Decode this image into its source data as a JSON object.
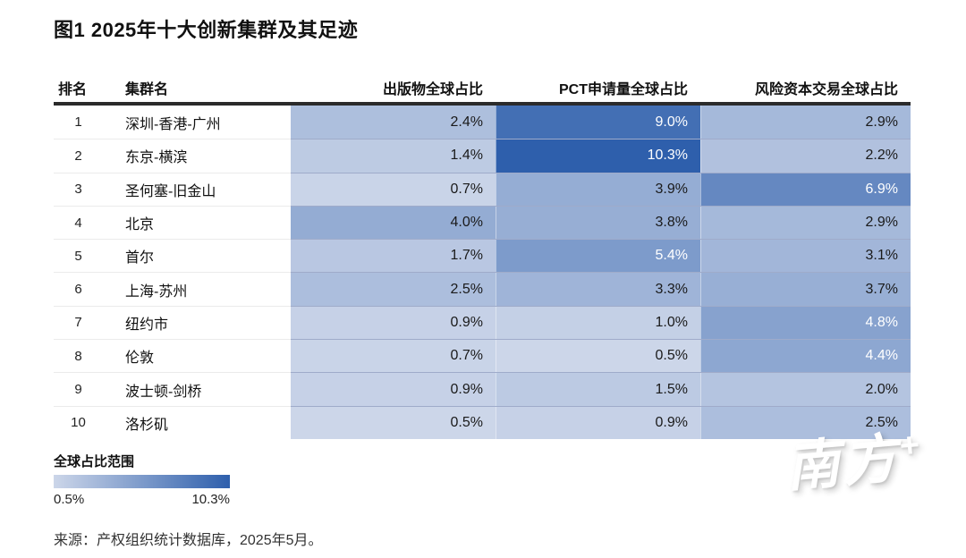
{
  "title": "图1 2025年十大创新集群及其足迹",
  "table": {
    "headers": {
      "rank": "排名",
      "cluster": "集群名",
      "publications": "出版物全球占比",
      "pct": "PCT申请量全球占比",
      "vc": "风险资本交易全球占比"
    },
    "rows": [
      {
        "rank": "1",
        "cluster": "深圳-香港-广州",
        "publications": 2.4,
        "pct": 9.0,
        "vc": 2.9
      },
      {
        "rank": "2",
        "cluster": "东京-横滨",
        "publications": 1.4,
        "pct": 10.3,
        "vc": 2.2
      },
      {
        "rank": "3",
        "cluster": "圣何塞-旧金山",
        "publications": 0.7,
        "pct": 3.9,
        "vc": 6.9
      },
      {
        "rank": "4",
        "cluster": "北京",
        "publications": 4.0,
        "pct": 3.8,
        "vc": 2.9
      },
      {
        "rank": "5",
        "cluster": "首尔",
        "publications": 1.7,
        "pct": 5.4,
        "vc": 3.1
      },
      {
        "rank": "6",
        "cluster": "上海-苏州",
        "publications": 2.5,
        "pct": 3.3,
        "vc": 3.7
      },
      {
        "rank": "7",
        "cluster": "纽约市",
        "publications": 0.9,
        "pct": 1.0,
        "vc": 4.8
      },
      {
        "rank": "8",
        "cluster": "伦敦",
        "publications": 0.7,
        "pct": 0.5,
        "vc": 4.4
      },
      {
        "rank": "9",
        "cluster": "波士顿-剑桥",
        "publications": 0.9,
        "pct": 1.5,
        "vc": 2.0
      },
      {
        "rank": "10",
        "cluster": "洛杉矶",
        "publications": 0.5,
        "pct": 0.9,
        "vc": 2.5
      }
    ]
  },
  "legend": {
    "title": "全球占比范围",
    "min_label": "0.5%",
    "max_label": "10.3%"
  },
  "source": "来源：产权组织统计数据库，2025年5月。",
  "watermark": {
    "text": "南方",
    "plus": "+"
  },
  "colors": {
    "scale_min": "#ccd6e9",
    "scale_max": "#2e5fac",
    "header_line": "#2b2b2b",
    "dark_cell_text": "#ffffff",
    "light_cell_text": "#1a1a1a"
  },
  "scale": {
    "min": 0.5,
    "max": 10.3,
    "unit": "%",
    "white_text_threshold": 0.39
  },
  "chart_data": {
    "type": "heatmap",
    "title": "图1 2025年十大创新集群及其足迹",
    "categories": [
      "深圳-香港-广州",
      "东京-横滨",
      "圣何塞-旧金山",
      "北京",
      "首尔",
      "上海-苏州",
      "纽约市",
      "伦敦",
      "波士顿-剑桥",
      "洛杉矶"
    ],
    "ranks": [
      1,
      2,
      3,
      4,
      5,
      6,
      7,
      8,
      9,
      10
    ],
    "series": [
      {
        "name": "出版物全球占比",
        "values": [
          2.4,
          1.4,
          0.7,
          4.0,
          1.7,
          2.5,
          0.9,
          0.7,
          0.9,
          0.5
        ]
      },
      {
        "name": "PCT申请量全球占比",
        "values": [
          9.0,
          10.3,
          3.9,
          3.8,
          5.4,
          3.3,
          1.0,
          0.5,
          1.5,
          0.9
        ]
      },
      {
        "name": "风险资本交易全球占比",
        "values": [
          2.9,
          2.2,
          6.9,
          2.9,
          3.1,
          3.7,
          4.8,
          4.4,
          2.0,
          2.5
        ]
      }
    ],
    "unit": "%",
    "color_scale": {
      "min": 0.5,
      "max": 10.3,
      "min_color": "#ccd6e9",
      "max_color": "#2e5fac"
    },
    "legend": {
      "title": "全球占比范围",
      "min_label": "0.5%",
      "max_label": "10.3%",
      "position": "bottom-left"
    }
  }
}
